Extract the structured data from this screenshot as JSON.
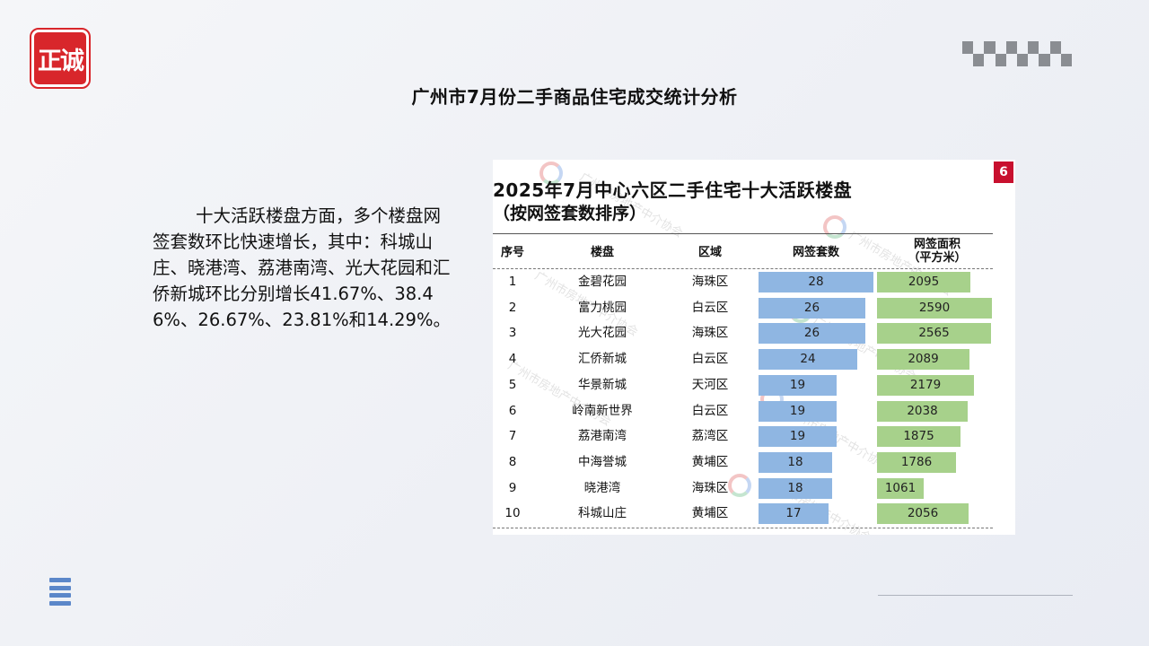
{
  "logo": {
    "text": "正诚"
  },
  "page": {
    "title": "广州市7月份二手商品住宅成交统计分析"
  },
  "body_text": "十大活跃楼盘方面，多个楼盘网签套数环比快速增长，其中：科城山庄、晓港湾、荔港南湾、光大花园和汇侨新城环比分别增长41.67%、38.46%、26.67%、23.81%和14.29%。",
  "table_card": {
    "page_badge": "6",
    "title_line1": "2025年7月中心六区二手住宅十大活跃楼盘",
    "title_line2": "（按网签套数排序）",
    "headers": {
      "rank": "序号",
      "estate": "楼盘",
      "district": "区域",
      "units": "网签套数",
      "area_line1": "网签面积",
      "area_line2": "（平方米）"
    },
    "watermark": "广州市房地产中介协会",
    "colors": {
      "units_bar": "#8fb6e2",
      "area_bar": "#a7d18b",
      "badge": "#c8102e"
    }
  },
  "chart_data": {
    "type": "table",
    "title": "2025年7月中心六区二手住宅十大活跃楼盘",
    "subtitle": "（按网签套数排序）",
    "columns": [
      "序号",
      "楼盘",
      "区域",
      "网签套数",
      "网签面积（平方米）"
    ],
    "rows": [
      {
        "rank": "1",
        "estate": "金碧花园",
        "district": "海珠区",
        "units": 28,
        "area": 2095
      },
      {
        "rank": "2",
        "estate": "富力桃园",
        "district": "白云区",
        "units": 26,
        "area": 2590
      },
      {
        "rank": "3",
        "estate": "光大花园",
        "district": "海珠区",
        "units": 26,
        "area": 2565
      },
      {
        "rank": "4",
        "estate": "汇侨新城",
        "district": "白云区",
        "units": 24,
        "area": 2089
      },
      {
        "rank": "5",
        "estate": "华景新城",
        "district": "天河区",
        "units": 19,
        "area": 2179
      },
      {
        "rank": "6",
        "estate": "岭南新世界",
        "district": "白云区",
        "units": 19,
        "area": 2038
      },
      {
        "rank": "7",
        "estate": "荔港南湾",
        "district": "荔湾区",
        "units": 19,
        "area": 1875
      },
      {
        "rank": "8",
        "estate": "中海誉城",
        "district": "黄埔区",
        "units": 18,
        "area": 1786
      },
      {
        "rank": "9",
        "estate": "晓港湾",
        "district": "海珠区",
        "units": 18,
        "area": 1061
      },
      {
        "rank": "10",
        "estate": "科城山庄",
        "district": "黄埔区",
        "units": 17,
        "area": 2056
      }
    ]
  }
}
